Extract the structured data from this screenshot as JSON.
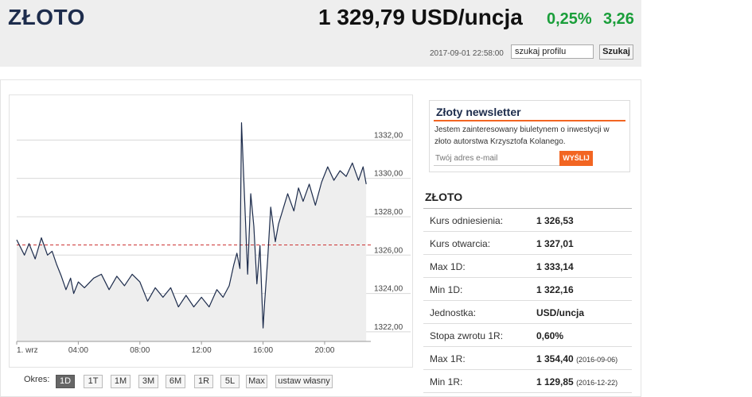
{
  "header": {
    "title": "ZŁOTO",
    "price": "1 329,79 USD/uncja",
    "change_pct": "0,25%",
    "change_abs": "3,26",
    "timestamp": "2017-09-01 22:58:00",
    "search_value": "szukaj profilu",
    "search_button": "Szukaj"
  },
  "periods": {
    "label": "Okres:",
    "items": [
      "1D",
      "1T",
      "1M",
      "3M",
      "6M",
      "1R",
      "5L",
      "Max",
      "ustaw własny"
    ],
    "active": "1D"
  },
  "newsletter": {
    "title": "Złoty newsletter",
    "text": "Jestem zainteresowany biuletynem o inwestycji w złoto autorstwa Krzysztofa Kolanego.",
    "placeholder": "Twój adres e-mail",
    "button": "WYŚLIJ"
  },
  "stats": {
    "title": "ZŁOTO",
    "rows": [
      {
        "label": "Kurs odniesienia:",
        "value": "1 326,53",
        "date": ""
      },
      {
        "label": "Kurs otwarcia:",
        "value": "1 327,01",
        "date": ""
      },
      {
        "label": "Max 1D:",
        "value": "1 333,14",
        "date": ""
      },
      {
        "label": "Min 1D:",
        "value": "1 322,16",
        "date": ""
      },
      {
        "label": "Jednostka:",
        "value": "USD/uncja",
        "date": ""
      },
      {
        "label": "Stopa zwrotu 1R:",
        "value": "0,60%",
        "date": ""
      },
      {
        "label": "Max 1R:",
        "value": "1 354,40",
        "date": "(2016-09-06)"
      },
      {
        "label": "Min 1R:",
        "value": "1 129,85",
        "date": "(2016-12-22)"
      }
    ]
  },
  "chart_data": {
    "type": "area",
    "x_unit": "hour of day (2017-09-01)",
    "x": [
      0.0,
      0.5,
      0.8,
      1.2,
      1.6,
      2.0,
      2.3,
      2.6,
      2.9,
      3.2,
      3.5,
      3.7,
      4.0,
      4.4,
      5.0,
      5.5,
      6.0,
      6.5,
      7.0,
      7.5,
      8.0,
      8.5,
      9.0,
      9.5,
      10.0,
      10.5,
      11.0,
      11.5,
      12.0,
      12.5,
      13.0,
      13.4,
      13.8,
      14.1,
      14.3,
      14.5,
      14.6,
      14.8,
      15.0,
      15.2,
      15.4,
      15.6,
      15.8,
      16.0,
      16.1,
      16.3,
      16.5,
      16.8,
      17.0,
      17.3,
      17.6,
      18.0,
      18.3,
      18.6,
      19.0,
      19.4,
      19.8,
      20.2,
      20.6,
      21.0,
      21.4,
      21.8,
      22.2,
      22.5,
      22.7
    ],
    "y": [
      1326.8,
      1326.0,
      1326.6,
      1325.8,
      1326.9,
      1326.0,
      1326.2,
      1325.5,
      1324.9,
      1324.2,
      1324.8,
      1324.0,
      1324.6,
      1324.3,
      1324.8,
      1325.0,
      1324.2,
      1324.9,
      1324.4,
      1325.0,
      1324.6,
      1323.6,
      1324.3,
      1323.8,
      1324.3,
      1323.3,
      1323.9,
      1323.3,
      1323.8,
      1323.3,
      1324.2,
      1323.8,
      1324.4,
      1325.5,
      1326.1,
      1325.3,
      1332.9,
      1329.0,
      1325.0,
      1329.2,
      1327.5,
      1324.5,
      1326.5,
      1322.2,
      1323.5,
      1325.8,
      1328.5,
      1326.7,
      1327.6,
      1328.4,
      1329.2,
      1328.3,
      1329.5,
      1328.8,
      1329.7,
      1328.6,
      1329.8,
      1330.6,
      1329.9,
      1330.4,
      1330.1,
      1330.8,
      1329.9,
      1330.6,
      1329.7
    ],
    "reference_line": 1326.53,
    "ylim": [
      1321.5,
      1334.0
    ],
    "xlim": [
      0,
      23.0
    ],
    "y_ticks": [
      "1322,00",
      "1324,00",
      "1326,00",
      "1328,00",
      "1330,00",
      "1332,00"
    ],
    "y_tick_values": [
      1322,
      1324,
      1326,
      1328,
      1330,
      1332
    ],
    "x_ticks": [
      "1. wrz",
      "04:00",
      "08:00",
      "12:00",
      "16:00",
      "20:00"
    ],
    "x_tick_values": [
      0,
      4,
      8,
      12,
      16,
      20
    ],
    "grid": true,
    "colors": {
      "line": "#1d2c4c",
      "fill": "#eeeeee",
      "reference": "#cc3333"
    }
  }
}
